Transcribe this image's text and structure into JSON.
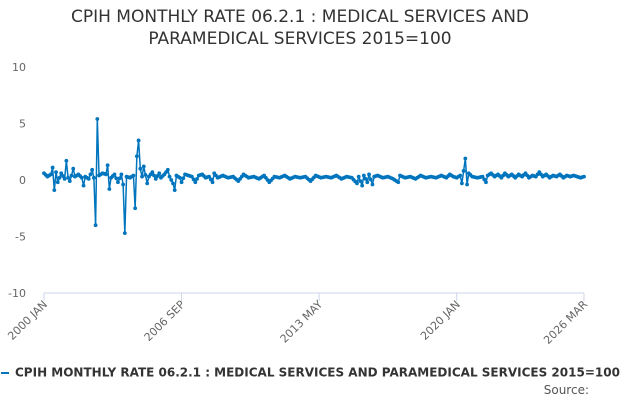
{
  "chart_data": {
    "type": "line",
    "title_lines": [
      "CPIH MONTHLY RATE 06.2.1 : MEDICAL SERVICES AND",
      "PARAMEDICAL SERVICES 2015=100"
    ],
    "title": "CPIH MONTHLY RATE 06.2.1 : MEDICAL SERVICES AND PARAMEDICAL SERVICES 2015=100",
    "xlabel": "",
    "ylabel": "",
    "ylim": [
      -10,
      10
    ],
    "yticks": [
      "10",
      "5",
      "0",
      "-5",
      "-10"
    ],
    "ytick_values": [
      10,
      5,
      0,
      -5,
      -10
    ],
    "xtick_labels": [
      "2000 JAN",
      "2006 SEP",
      "2013 MAY",
      "2020 JAN",
      "2026 MAR"
    ],
    "xtick_months": [
      0,
      80,
      160,
      240,
      314
    ],
    "month_count": 315,
    "series": [
      {
        "name": "CPIH MONTHLY RATE 06.2.1 : MEDICAL SERVICES AND PARAMEDICAL SERVICES 2015=100",
        "color": "#0075be",
        "anchors": [
          [
            0,
            0.6
          ],
          [
            2,
            0.3
          ],
          [
            4,
            0.5
          ],
          [
            5,
            1.1
          ],
          [
            6,
            -0.9
          ],
          [
            7,
            0.7
          ],
          [
            8,
            -0.2
          ],
          [
            10,
            0.6
          ],
          [
            12,
            0.1
          ],
          [
            13,
            1.7
          ],
          [
            14,
            0.2
          ],
          [
            15,
            -0.1
          ],
          [
            16,
            0.4
          ],
          [
            17,
            1.0
          ],
          [
            18,
            0.3
          ],
          [
            20,
            0.5
          ],
          [
            22,
            0.2
          ],
          [
            23,
            -0.5
          ],
          [
            24,
            0.3
          ],
          [
            26,
            0.1
          ],
          [
            28,
            0.9
          ],
          [
            29,
            0.2
          ],
          [
            30,
            -4.0
          ],
          [
            31,
            5.4
          ],
          [
            32,
            0.4
          ],
          [
            34,
            0.6
          ],
          [
            36,
            0.5
          ],
          [
            37,
            1.3
          ],
          [
            38,
            -0.8
          ],
          [
            39,
            0.2
          ],
          [
            41,
            0.5
          ],
          [
            43,
            -0.2
          ],
          [
            45,
            0.5
          ],
          [
            46,
            -0.4
          ],
          [
            47,
            -4.7
          ],
          [
            48,
            0.3
          ],
          [
            50,
            0.2
          ],
          [
            52,
            0.4
          ],
          [
            53,
            -2.5
          ],
          [
            54,
            2.1
          ],
          [
            55,
            3.5
          ],
          [
            56,
            1.0
          ],
          [
            57,
            0.3
          ],
          [
            58,
            1.2
          ],
          [
            60,
            -0.3
          ],
          [
            61,
            0.3
          ],
          [
            63,
            0.7
          ],
          [
            65,
            0.1
          ],
          [
            67,
            0.6
          ],
          [
            68,
            0.2
          ],
          [
            70,
            0.5
          ],
          [
            72,
            0.9
          ],
          [
            73,
            0.3
          ],
          [
            75,
            -0.3
          ],
          [
            76,
            -0.9
          ],
          [
            77,
            0.4
          ],
          [
            79,
            0.2
          ],
          [
            80,
            -0.2
          ],
          [
            82,
            0.5
          ],
          [
            84,
            0.4
          ],
          [
            86,
            0.3
          ],
          [
            88,
            -0.2
          ],
          [
            90,
            0.4
          ],
          [
            92,
            0.5
          ],
          [
            94,
            0.2
          ],
          [
            96,
            0.3
          ],
          [
            98,
            -0.2
          ],
          [
            99,
            0.6
          ],
          [
            101,
            0.2
          ],
          [
            104,
            0.4
          ],
          [
            107,
            0.2
          ],
          [
            110,
            0.3
          ],
          [
            113,
            -0.1
          ],
          [
            116,
            0.5
          ],
          [
            119,
            0.2
          ],
          [
            122,
            0.3
          ],
          [
            125,
            0.1
          ],
          [
            128,
            0.4
          ],
          [
            131,
            -0.2
          ],
          [
            134,
            0.3
          ],
          [
            137,
            0.2
          ],
          [
            140,
            0.4
          ],
          [
            143,
            0.1
          ],
          [
            146,
            0.3
          ],
          [
            149,
            0.2
          ],
          [
            152,
            0.3
          ],
          [
            155,
            -0.1
          ],
          [
            158,
            0.4
          ],
          [
            161,
            0.2
          ],
          [
            164,
            0.3
          ],
          [
            167,
            0.2
          ],
          [
            170,
            0.4
          ],
          [
            173,
            0.1
          ],
          [
            176,
            0.3
          ],
          [
            179,
            0.2
          ],
          [
            182,
            -0.3
          ],
          [
            183,
            0.3
          ],
          [
            185,
            -0.5
          ],
          [
            186,
            0.4
          ],
          [
            188,
            -0.2
          ],
          [
            189,
            0.5
          ],
          [
            191,
            -0.4
          ],
          [
            192,
            0.3
          ],
          [
            194,
            0.4
          ],
          [
            197,
            0.2
          ],
          [
            200,
            0.3
          ],
          [
            203,
            0.1
          ],
          [
            206,
            -0.2
          ],
          [
            207,
            0.4
          ],
          [
            210,
            0.2
          ],
          [
            213,
            0.3
          ],
          [
            216,
            0.1
          ],
          [
            219,
            0.4
          ],
          [
            222,
            0.2
          ],
          [
            225,
            0.3
          ],
          [
            228,
            0.2
          ],
          [
            231,
            0.4
          ],
          [
            234,
            0.2
          ],
          [
            236,
            0.5
          ],
          [
            238,
            0.3
          ],
          [
            240,
            0.2
          ],
          [
            242,
            0.4
          ],
          [
            243,
            -0.3
          ],
          [
            245,
            1.9
          ],
          [
            246,
            -0.4
          ],
          [
            247,
            0.6
          ],
          [
            249,
            0.3
          ],
          [
            252,
            0.2
          ],
          [
            255,
            0.3
          ],
          [
            257,
            -0.2
          ],
          [
            258,
            0.4
          ],
          [
            260,
            0.6
          ],
          [
            262,
            0.3
          ],
          [
            264,
            0.5
          ],
          [
            266,
            0.2
          ],
          [
            268,
            0.6
          ],
          [
            270,
            0.3
          ],
          [
            272,
            0.5
          ],
          [
            274,
            0.2
          ],
          [
            276,
            0.5
          ],
          [
            278,
            0.3
          ],
          [
            280,
            0.6
          ],
          [
            282,
            0.2
          ],
          [
            284,
            0.4
          ],
          [
            286,
            0.3
          ],
          [
            288,
            0.7
          ],
          [
            290,
            0.3
          ],
          [
            292,
            0.5
          ],
          [
            294,
            0.2
          ],
          [
            296,
            0.4
          ],
          [
            298,
            0.3
          ],
          [
            300,
            0.5
          ],
          [
            302,
            0.2
          ],
          [
            304,
            0.4
          ],
          [
            306,
            0.3
          ],
          [
            308,
            0.4
          ],
          [
            310,
            0.3
          ],
          [
            312,
            0.2
          ],
          [
            314,
            0.3
          ]
        ]
      }
    ],
    "grid": false,
    "legend_position": "bottom",
    "credits": "Source:"
  }
}
